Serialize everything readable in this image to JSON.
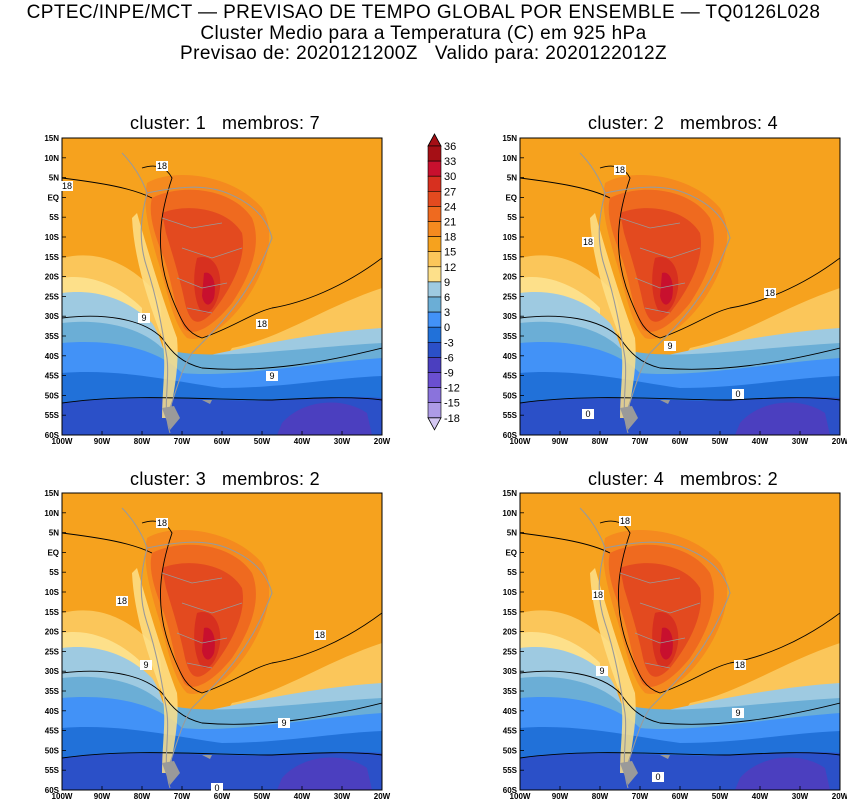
{
  "header": {
    "line1": "CPTEC/INPE/MCT — PREVISAO DE TEMPO GLOBAL POR ENSEMBLE — TQ0126L028",
    "line2": "Cluster Medio para a Temperatura (C) em 925 hPa",
    "line3": "Previsao de: 2020121200Z   Valido para: 2020122012Z"
  },
  "lat_labels": [
    "15N",
    "10N",
    "5N",
    "EQ",
    "5S",
    "10S",
    "15S",
    "20S",
    "25S",
    "30S",
    "35S",
    "40S",
    "45S",
    "50S",
    "55S",
    "60S"
  ],
  "lon_labels": [
    "100W",
    "90W",
    "80W",
    "70W",
    "60W",
    "50W",
    "40W",
    "30W",
    "20W"
  ],
  "colorbar": {
    "levels": [
      "36",
      "33",
      "30",
      "27",
      "24",
      "21",
      "18",
      "15",
      "12",
      "9",
      "6",
      "3",
      "0",
      "-3",
      "-6",
      "-9",
      "-12",
      "-15",
      "-18"
    ],
    "colors": [
      "#a50f15",
      "#c8102e",
      "#d7301f",
      "#e34a1f",
      "#ef6a1f",
      "#f58a1f",
      "#f6a21e",
      "#fbc65a",
      "#fde08a",
      "#9ecae1",
      "#6baed6",
      "#4292f7",
      "#2171d9",
      "#2b50c8",
      "#4b3fbf",
      "#6a4fd0",
      "#8a73dc",
      "#ad9be6",
      "#d4c8f2"
    ]
  },
  "panels": [
    {
      "title": "cluster: 1   membros: 7",
      "contour_labels": [
        "18",
        "18",
        "18",
        "9",
        "9"
      ]
    },
    {
      "title": "cluster: 2   membros: 4",
      "contour_labels": [
        "18",
        "18",
        "18",
        "9",
        "0",
        "0"
      ]
    },
    {
      "title": "cluster: 3   membros: 2",
      "contour_labels": [
        "18",
        "18",
        "18",
        "9",
        "9",
        "0"
      ]
    },
    {
      "title": "cluster: 4   membros: 2",
      "contour_labels": [
        "18",
        "18",
        "18",
        "9",
        "9",
        "0"
      ]
    }
  ]
}
